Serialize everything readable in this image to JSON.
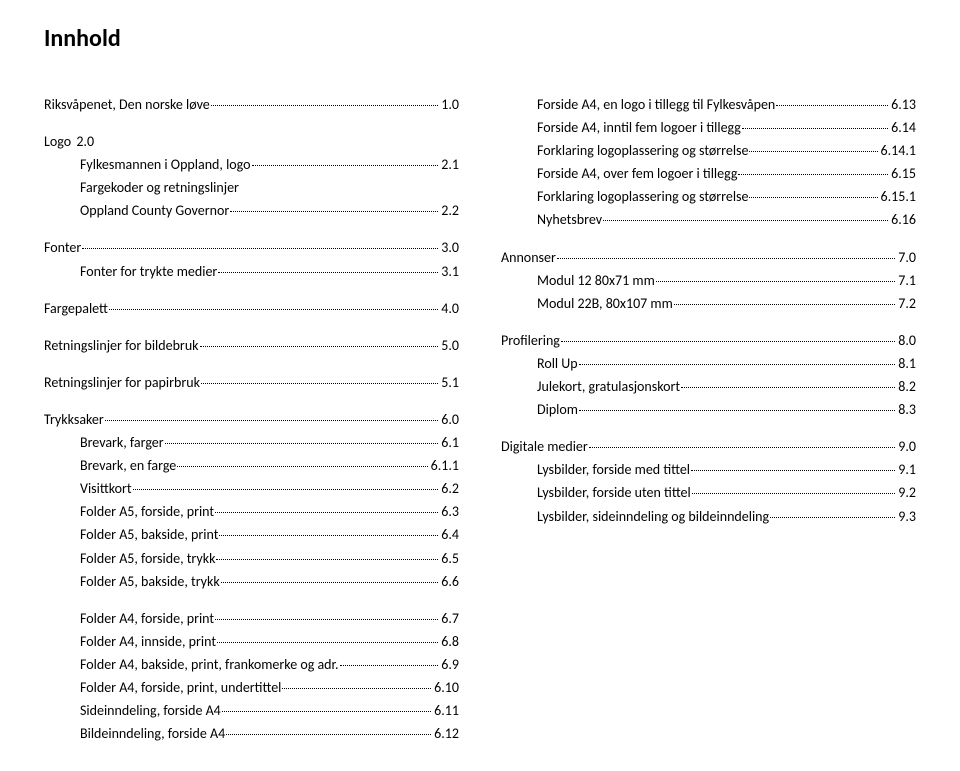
{
  "title": "Innhold",
  "left": [
    {
      "label": "Riksvåpenet, Den norske løve",
      "page": "1.0",
      "indent": false
    },
    {
      "gap": true
    },
    {
      "label": "Logo",
      "page": "2.0",
      "indent": false,
      "nodots": true
    },
    {
      "label": "Fylkesmannen i Oppland, logo",
      "page": "2.1",
      "indent": true
    },
    {
      "label": "Fargekoder og retningslinjer",
      "page": "",
      "indent": true,
      "nobreak": true
    },
    {
      "label": "Oppland County Governor",
      "page": "2.2",
      "indent": true
    },
    {
      "gap": true
    },
    {
      "label": "Fonter",
      "page": "3.0",
      "indent": false
    },
    {
      "label": "Fonter for trykte medier",
      "page": "3.1",
      "indent": true
    },
    {
      "gap": true
    },
    {
      "label": "Fargepalett",
      "page": "4.0",
      "indent": false
    },
    {
      "gap": true
    },
    {
      "label": "Retningslinjer for bildebruk",
      "page": "5.0",
      "indent": false
    },
    {
      "gap": true
    },
    {
      "label": "Retningslinjer for papirbruk",
      "page": "5.1",
      "indent": false
    },
    {
      "gap": true
    },
    {
      "label": "Trykksaker",
      "page": "6.0",
      "indent": false
    },
    {
      "label": "Brevark, farger",
      "page": "6.1",
      "indent": true
    },
    {
      "label": "Brevark, en farge",
      "page": "6.1.1",
      "indent": true
    },
    {
      "label": "Visittkort",
      "page": "6.2",
      "indent": true
    },
    {
      "label": "Folder A5, forside, print",
      "page": "6.3",
      "indent": true
    },
    {
      "label": "Folder A5, bakside, print",
      "page": "6.4",
      "indent": true
    },
    {
      "label": "Folder A5, forside, trykk",
      "page": "6.5",
      "indent": true
    },
    {
      "label": "Folder A5, bakside, trykk",
      "page": "6.6",
      "indent": true
    },
    {
      "gap": true
    },
    {
      "label": "Folder A4, forside, print",
      "page": "6.7",
      "indent": true
    },
    {
      "label": "Folder A4, innside, print",
      "page": "6.8",
      "indent": true
    },
    {
      "label": "Folder A4, bakside, print, frankomerke og adr.",
      "page": "6.9",
      "indent": true
    },
    {
      "label": "Folder A4, forside, print, undertittel",
      "page": "6.10",
      "indent": true
    },
    {
      "label": "Sideinndeling, forside A4",
      "page": "6.11",
      "indent": true
    },
    {
      "label": "Bildeinndeling, forside A4",
      "page": "6.12",
      "indent": true
    }
  ],
  "right": [
    {
      "label": "Forside A4, en logo i tillegg til Fylkesvåpen",
      "page": "6.13",
      "indent": true
    },
    {
      "label": "Forside A4, inntil fem logoer i tillegg",
      "page": "6.14",
      "indent": true
    },
    {
      "label": "Forklaring logoplassering og størrelse",
      "page": "6.14.1",
      "indent": true
    },
    {
      "label": "Forside A4, over fem logoer i tillegg",
      "page": "6.15",
      "indent": true
    },
    {
      "label": "Forklaring logoplassering og størrelse",
      "page": "6.15.1",
      "indent": true
    },
    {
      "label": "Nyhetsbrev",
      "page": "6.16",
      "indent": true
    },
    {
      "gap": true
    },
    {
      "label": "Annonser",
      "page": "7.0",
      "indent": false
    },
    {
      "label": "Modul 12 80x71 mm",
      "page": "7.1",
      "indent": true
    },
    {
      "label": "Modul 22B, 80x107 mm",
      "page": "7.2",
      "indent": true
    },
    {
      "gap": true
    },
    {
      "label": "Profilering",
      "page": "8.0",
      "indent": false
    },
    {
      "label": "Roll Up",
      "page": "8.1",
      "indent": true
    },
    {
      "label": "Julekort, gratulasjonskort",
      "page": "8.2",
      "indent": true
    },
    {
      "label": "Diplom",
      "page": "8.3",
      "indent": true
    },
    {
      "gap": true
    },
    {
      "label": "Digitale medier",
      "page": "9.0",
      "indent": false
    },
    {
      "label": "Lysbilder, forside med tittel",
      "page": "9.1",
      "indent": true
    },
    {
      "label": "Lysbilder, forside uten tittel",
      "page": "9.2",
      "indent": true
    },
    {
      "label": "Lysbilder, sideinndeling og bildeinndeling",
      "page": "9.3",
      "indent": true
    }
  ]
}
